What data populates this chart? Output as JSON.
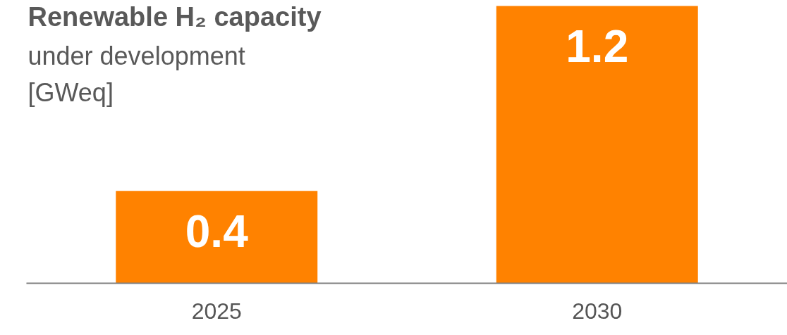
{
  "chart_data": {
    "type": "bar",
    "title": "Renewable H₂ capacity",
    "subtitle": "under development",
    "ylabel": "[GWeq]",
    "categories": [
      "2025",
      "2030"
    ],
    "values": [
      0.4,
      1.2
    ],
    "color": "#ff8200",
    "data_labels": true,
    "grid": false,
    "tick_labels": "x"
  }
}
